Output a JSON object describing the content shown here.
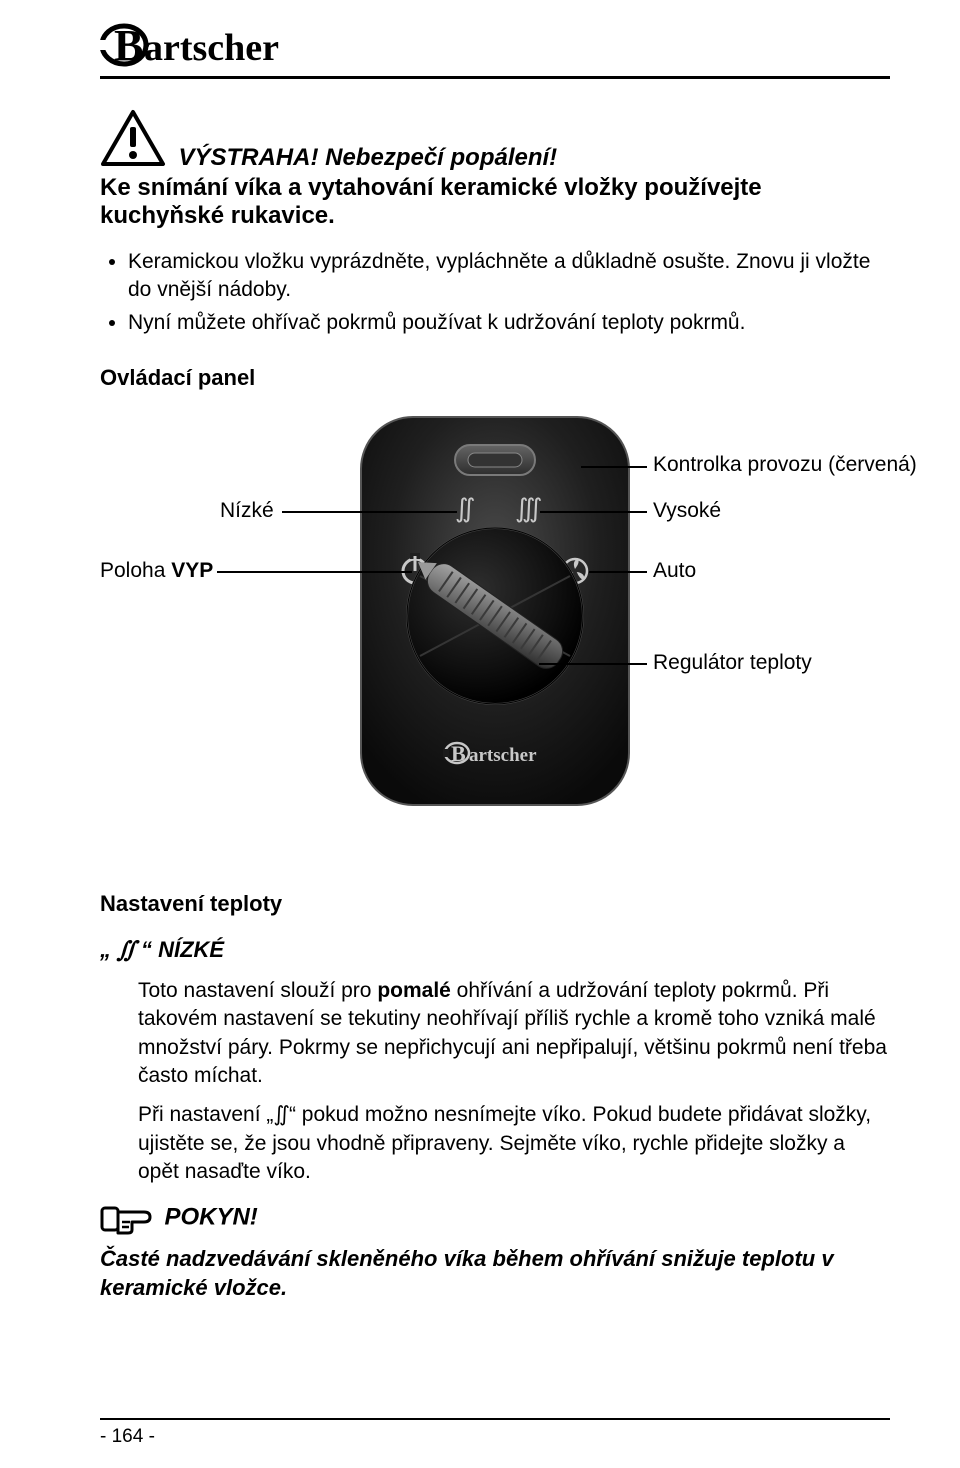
{
  "logo_text": "artscher",
  "warning": {
    "title": "VÝSTRAHA! Nebezpečí popálení!",
    "subtitle": "Ke snímání víka a vytahování keramické vložky používejte kuchyňské rukavice."
  },
  "bullets": [
    "Keramickou vložku vyprázdněte, vypláchněte a důkladně osušte. Znovu ji vložte do vnější nádoby.",
    "Nyní můžete ohřívač pokrmů používat k udržování teploty pokrmů."
  ],
  "control_panel": {
    "heading": "Ovládací panel",
    "labels": {
      "indicator": "Kontrolka provozu (červená)",
      "low": "Nízké",
      "high": "Vysoké",
      "off": "Poloha VYP",
      "auto": "Auto",
      "regulator": "Regulátor teploty"
    },
    "brand_on_panel": "artscher",
    "panel_colors": {
      "body": "#1a1a1a",
      "body_edge": "#4a4a4a",
      "led_window": "#404040",
      "led_frame": "#6a6a6a",
      "icon": "#c8c8c8",
      "dial_dark": "#0f0f0f",
      "dial_rim": "#555555",
      "dial_grip_light": "#8a8a8a",
      "dial_grip_dark": "#2a2a2a"
    }
  },
  "temperature": {
    "heading": "Nastavení teploty",
    "nizke_heading_prefix": "„ ",
    "nizke_heading_suffix": " “ NÍZKÉ",
    "steam_glyph": "∬",
    "para1_a": "Toto nastavení slouží pro ",
    "para1_b_bold": "pomalé",
    "para1_c": " ohřívání a udržování teploty pokrmů. Při takovém nastavení se tekutiny neohřívají příliš rychle a kromě toho vzniká malé množství páry. Pokrmy se nepřichycují ani nepřipalují, většinu pokrmů není třeba často míchat.",
    "para2_a": "Při nastavení „",
    "para2_b": "“ pokud možno nesnímejte víko. Pokud budete přidávat složky, ujistěte se, že jsou vhodně připraveny. Sejměte víko, rychle přidejte složky a opět nasaďte víko."
  },
  "pokyn": {
    "title": "POKYN!",
    "body": "Časté nadzvedávání skleněného víka během ohřívání snižuje teplotu v keramické vložce."
  },
  "page_number": "- 164 -"
}
